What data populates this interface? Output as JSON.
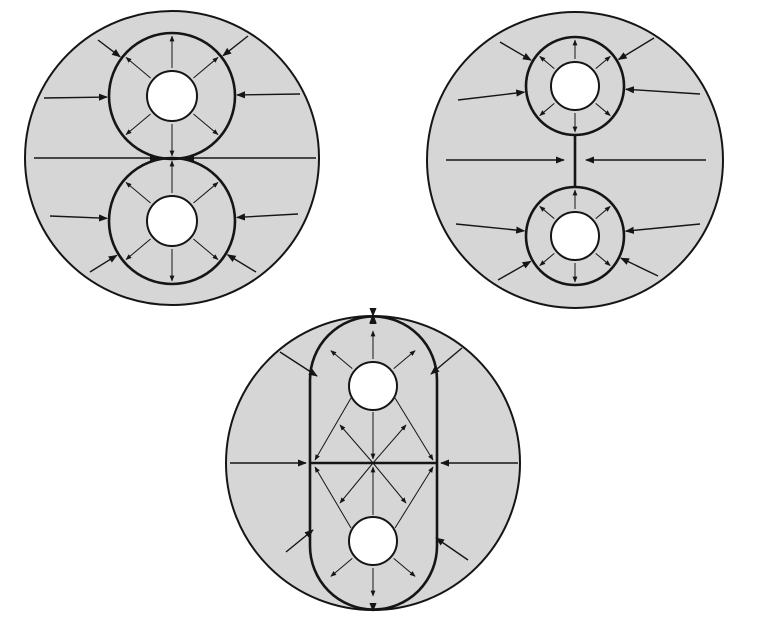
{
  "figure": {
    "background": "#ffffff",
    "disc_fill": "#d6d6d6",
    "hole_fill": "#ffffff",
    "line_color": "#151515",
    "panels": [
      {
        "id": "panel-a",
        "layout": "two-touching-rings"
      },
      {
        "id": "panel-b",
        "layout": "two-rings-joined-by-bar"
      },
      {
        "id": "panel-c",
        "layout": "stadium-enclosing-two-holes"
      }
    ]
  }
}
